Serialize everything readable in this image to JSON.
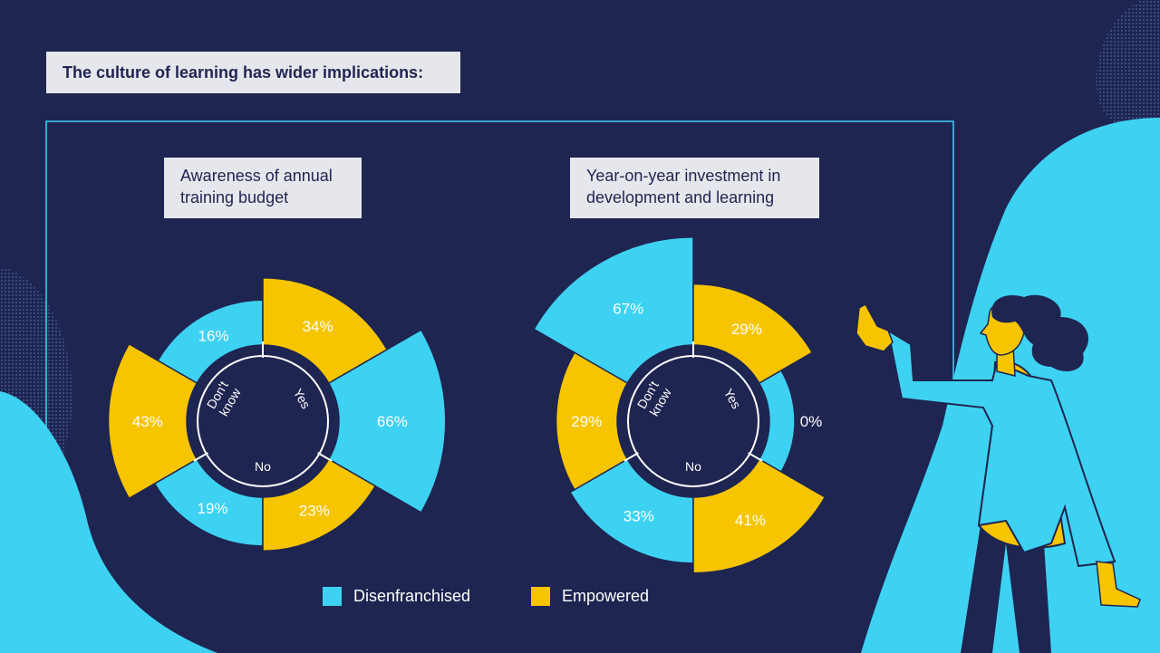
{
  "header": {
    "title": "The culture of learning has wider implications:"
  },
  "colors": {
    "background": "#1f2551",
    "disenfranchised": "#3ed2f2",
    "empowered": "#f6c500",
    "panel": "#e6e7ec"
  },
  "legend": {
    "items": [
      {
        "label": "Disenfranchised",
        "color": "#3ed2f2"
      },
      {
        "label": "Empowered",
        "color": "#f6c500"
      }
    ]
  },
  "chart_data": [
    {
      "type": "pie",
      "title": "Awareness of annual training budget",
      "categories": [
        "Yes",
        "No",
        "Don't know"
      ],
      "series": [
        {
          "name": "Disenfranchised",
          "values": [
            66,
            19,
            16
          ]
        },
        {
          "name": "Empowered",
          "values": [
            34,
            23,
            43
          ]
        }
      ],
      "labels": [
        {
          "name": "Disenfranchised",
          "category": "Yes",
          "text": "66%"
        },
        {
          "name": "Empowered",
          "category": "Yes",
          "text": "34%"
        },
        {
          "name": "Disenfranchised",
          "category": "No",
          "text": "19%"
        },
        {
          "name": "Empowered",
          "category": "No",
          "text": "23%"
        },
        {
          "name": "Disenfranchised",
          "category": "Don't know",
          "text": "16%"
        },
        {
          "name": "Empowered",
          "category": "Don't know",
          "text": "43%"
        }
      ]
    },
    {
      "type": "pie",
      "title": "Year-on-year investment in development and learning",
      "categories": [
        "Yes",
        "No",
        "Don't know"
      ],
      "series": [
        {
          "name": "Disenfranchised",
          "values": [
            0,
            33,
            67
          ]
        },
        {
          "name": "Empowered",
          "values": [
            29,
            41,
            29
          ]
        }
      ],
      "labels": [
        {
          "name": "Disenfranchised",
          "category": "Yes",
          "text": "0%"
        },
        {
          "name": "Empowered",
          "category": "Yes",
          "text": "29%"
        },
        {
          "name": "Disenfranchised",
          "category": "No",
          "text": "33%"
        },
        {
          "name": "Empowered",
          "category": "No",
          "text": "41%"
        },
        {
          "name": "Disenfranchised",
          "category": "Don't know",
          "text": "67%"
        },
        {
          "name": "Empowered",
          "category": "Don't know",
          "text": "29%"
        }
      ]
    }
  ]
}
